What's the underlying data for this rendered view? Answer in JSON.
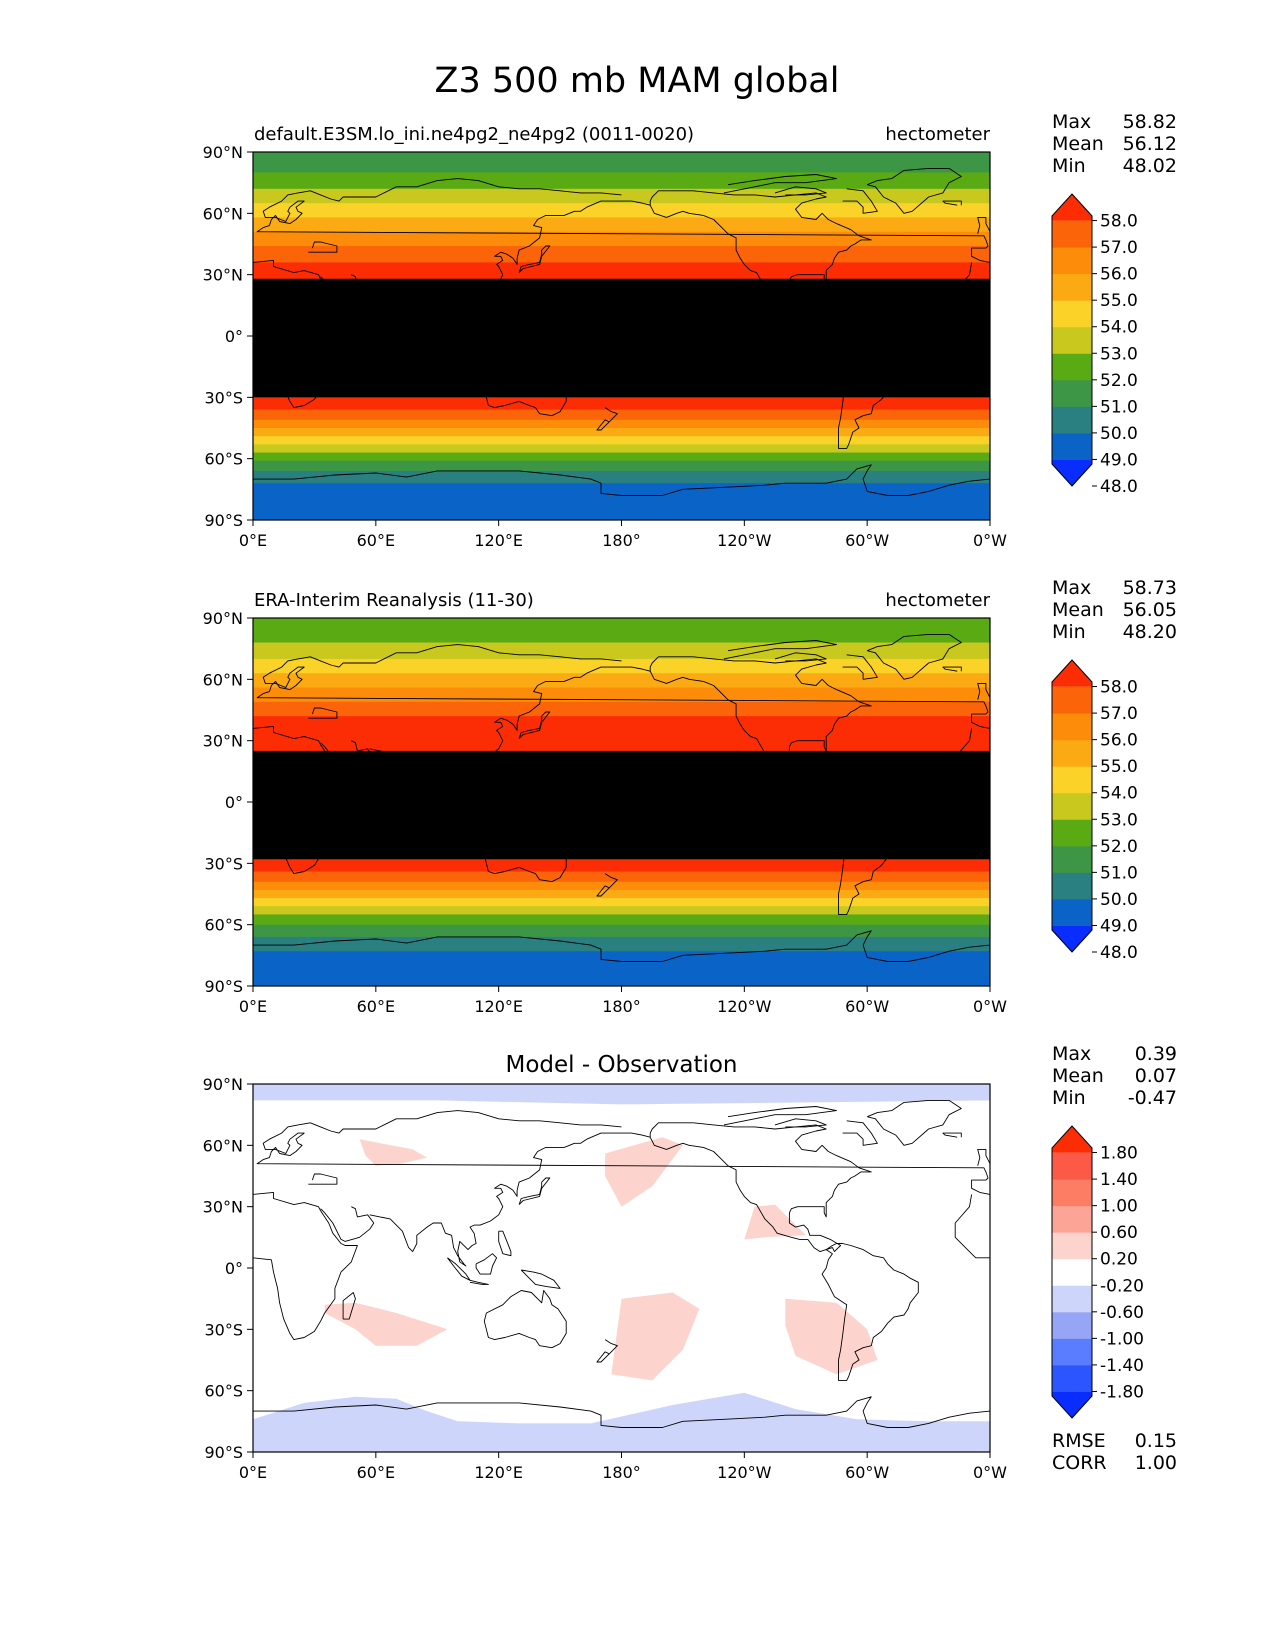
{
  "title": "Z3 500 mb MAM global",
  "chart_data": [
    {
      "type": "heatmap",
      "title_left": "default.E3SM.lo_ini.ne4pg2_ne4pg2 (0011-0020)",
      "title_right": "hectometer",
      "x_ticks": [
        "0°E",
        "60°E",
        "120°E",
        "180°",
        "120°W",
        "60°W",
        "0°W"
      ],
      "y_ticks": [
        "90°N",
        "60°N",
        "30°N",
        "0°",
        "30°S",
        "60°S",
        "90°S"
      ],
      "xlim": [
        0,
        360
      ],
      "ylim": [
        -90,
        90
      ],
      "stats": {
        "Max": "58.82",
        "Mean": "56.12",
        "Min": "48.02"
      },
      "colorbar": {
        "levels": [
          "58.0",
          "57.0",
          "56.0",
          "55.0",
          "54.0",
          "53.0",
          "52.0",
          "51.0",
          "50.0",
          "49.0",
          "48.0"
        ],
        "colors": [
          "#0a2dff",
          "#0a64c8",
          "#2a8080",
          "#3c9646",
          "#5aaa14",
          "#c8c81e",
          "#fad228",
          "#fcaa14",
          "#fc8c0a",
          "#fc640a",
          "#fc2d05"
        ]
      },
      "band_values": [
        {
          "lat": [
            90,
            80
          ],
          "value": 50.5
        },
        {
          "lat": [
            80,
            72
          ],
          "value": 51.5
        },
        {
          "lat": [
            72,
            65
          ],
          "value": 52.5
        },
        {
          "lat": [
            65,
            58
          ],
          "value": 53.5
        },
        {
          "lat": [
            58,
            51
          ],
          "value": 54.5
        },
        {
          "lat": [
            51,
            44
          ],
          "value": 55.5
        },
        {
          "lat": [
            44,
            36
          ],
          "value": 56.5
        },
        {
          "lat": [
            36,
            28
          ],
          "value": 57.5
        },
        {
          "lat": [
            28,
            -30
          ],
          "value": 58.5
        },
        {
          "lat": [
            -30,
            -36
          ],
          "value": 57.5
        },
        {
          "lat": [
            -36,
            -41
          ],
          "value": 56.5
        },
        {
          "lat": [
            -41,
            -45
          ],
          "value": 55.5
        },
        {
          "lat": [
            -45,
            -49
          ],
          "value": 54.5
        },
        {
          "lat": [
            -49,
            -53
          ],
          "value": 53.5
        },
        {
          "lat": [
            -53,
            -57
          ],
          "value": 52.5
        },
        {
          "lat": [
            -57,
            -61
          ],
          "value": 51.5
        },
        {
          "lat": [
            -61,
            -66
          ],
          "value": 50.5
        },
        {
          "lat": [
            -66,
            -72
          ],
          "value": 49.5
        },
        {
          "lat": [
            -72,
            -90
          ],
          "value": 48.5
        }
      ]
    },
    {
      "type": "heatmap",
      "title_left": "ERA-Interim Reanalysis (11-30)",
      "title_right": "hectometer",
      "x_ticks": [
        "0°E",
        "60°E",
        "120°E",
        "180°",
        "120°W",
        "60°W",
        "0°W"
      ],
      "y_ticks": [
        "90°N",
        "60°N",
        "30°N",
        "0°",
        "30°S",
        "60°S",
        "90°S"
      ],
      "xlim": [
        0,
        360
      ],
      "ylim": [
        -90,
        90
      ],
      "stats": {
        "Max": "58.73",
        "Mean": "56.05",
        "Min": "48.20"
      },
      "colorbar": {
        "levels": [
          "58.0",
          "57.0",
          "56.0",
          "55.0",
          "54.0",
          "53.0",
          "52.0",
          "51.0",
          "50.0",
          "49.0",
          "48.0"
        ],
        "colors": [
          "#0a2dff",
          "#0a64c8",
          "#2a8080",
          "#3c9646",
          "#5aaa14",
          "#c8c81e",
          "#fad228",
          "#fcaa14",
          "#fc8c0a",
          "#fc640a",
          "#fc2d05"
        ]
      },
      "band_values": [
        {
          "lat": [
            90,
            78
          ],
          "value": 51.5
        },
        {
          "lat": [
            78,
            70
          ],
          "value": 52.5
        },
        {
          "lat": [
            70,
            63
          ],
          "value": 53.5
        },
        {
          "lat": [
            63,
            56
          ],
          "value": 54.5
        },
        {
          "lat": [
            56,
            49
          ],
          "value": 55.5
        },
        {
          "lat": [
            49,
            42
          ],
          "value": 56.5
        },
        {
          "lat": [
            42,
            34
          ],
          "value": 57.5
        },
        {
          "lat": [
            34,
            25
          ],
          "value": 57.5
        },
        {
          "lat": [
            25,
            -28
          ],
          "value": 58.5
        },
        {
          "lat": [
            -28,
            -34
          ],
          "value": 57.5
        },
        {
          "lat": [
            -34,
            -39
          ],
          "value": 56.5
        },
        {
          "lat": [
            -39,
            -43
          ],
          "value": 55.5
        },
        {
          "lat": [
            -43,
            -47
          ],
          "value": 54.5
        },
        {
          "lat": [
            -47,
            -51
          ],
          "value": 53.5
        },
        {
          "lat": [
            -51,
            -55
          ],
          "value": 52.5
        },
        {
          "lat": [
            -55,
            -60
          ],
          "value": 51.5
        },
        {
          "lat": [
            -60,
            -66
          ],
          "value": 50.5
        },
        {
          "lat": [
            -66,
            -73
          ],
          "value": 49.5
        },
        {
          "lat": [
            -73,
            -90
          ],
          "value": 48.5
        }
      ]
    },
    {
      "type": "heatmap",
      "title_center": "Model - Observation",
      "x_ticks": [
        "0°E",
        "60°E",
        "120°E",
        "180°",
        "120°W",
        "60°W",
        "0°W"
      ],
      "y_ticks": [
        "90°N",
        "60°N",
        "30°N",
        "0°",
        "30°S",
        "60°S",
        "90°S"
      ],
      "xlim": [
        0,
        360
      ],
      "ylim": [
        -90,
        90
      ],
      "stats": {
        "Max": "0.39",
        "Mean": "0.07",
        "Min": "-0.47"
      },
      "metrics": {
        "RMSE": "0.15",
        "CORR": "1.00"
      },
      "colorbar": {
        "levels": [
          "1.80",
          "1.40",
          "1.00",
          "0.60",
          "0.20",
          "-0.20",
          "-0.60",
          "-1.00",
          "-1.40",
          "-1.80"
        ],
        "colors": [
          "#0a2dff",
          "#2d55ff",
          "#5a7dff",
          "#96a5f5",
          "#cdd5fa",
          "#ffffff",
          "#fdd3cd",
          "#fca596",
          "#fc7d64",
          "#fc5a46",
          "#fc2d05"
        ]
      },
      "anomaly_regions": [
        {
          "value": -0.3,
          "points": [
            [
              0,
              90
            ],
            [
              360,
              90
            ],
            [
              360,
              82
            ],
            [
              180,
              80
            ],
            [
              90,
              82
            ],
            [
              0,
              82
            ]
          ]
        },
        {
          "value": -0.3,
          "points": [
            [
              0,
              -90
            ],
            [
              0,
              -74
            ],
            [
              25,
              -66
            ],
            [
              50,
              -63
            ],
            [
              70,
              -64
            ],
            [
              85,
              -70
            ],
            [
              100,
              -75
            ],
            [
              130,
              -76
            ],
            [
              165,
              -76
            ],
            [
              205,
              -67
            ],
            [
              240,
              -61
            ],
            [
              265,
              -69
            ],
            [
              295,
              -74
            ],
            [
              330,
              -75
            ],
            [
              360,
              -75
            ],
            [
              360,
              -90
            ]
          ]
        },
        {
          "value": 0.3,
          "points": [
            [
              52,
              63
            ],
            [
              78,
              58
            ],
            [
              85,
              54
            ],
            [
              72,
              51
            ],
            [
              60,
              50
            ],
            [
              55,
              55
            ]
          ]
        },
        {
          "value": 0.3,
          "points": [
            [
              172,
              56
            ],
            [
              200,
              64
            ],
            [
              210,
              60
            ],
            [
              195,
              40
            ],
            [
              180,
              30
            ],
            [
              172,
              45
            ]
          ]
        },
        {
          "value": 0.3,
          "points": [
            [
              245,
              30
            ],
            [
              255,
              31
            ],
            [
              262,
              24
            ],
            [
              270,
              16
            ],
            [
              250,
              15
            ],
            [
              240,
              14
            ]
          ]
        },
        {
          "value": 0.3,
          "points": [
            [
              35,
              -18
            ],
            [
              50,
              -17
            ],
            [
              70,
              -22
            ],
            [
              95,
              -30
            ],
            [
              80,
              -38
            ],
            [
              60,
              -38
            ],
            [
              50,
              -30
            ],
            [
              35,
              -22
            ]
          ]
        },
        {
          "value": 0.3,
          "points": [
            [
              180,
              -15
            ],
            [
              205,
              -12
            ],
            [
              218,
              -20
            ],
            [
              210,
              -40
            ],
            [
              195,
              -55
            ],
            [
              175,
              -52
            ],
            [
              178,
              -30
            ]
          ]
        },
        {
          "value": 0.3,
          "points": [
            [
              260,
              -15
            ],
            [
              285,
              -17
            ],
            [
              300,
              -30
            ],
            [
              305,
              -45
            ],
            [
              285,
              -52
            ],
            [
              265,
              -43
            ],
            [
              260,
              -28
            ]
          ]
        }
      ]
    }
  ]
}
